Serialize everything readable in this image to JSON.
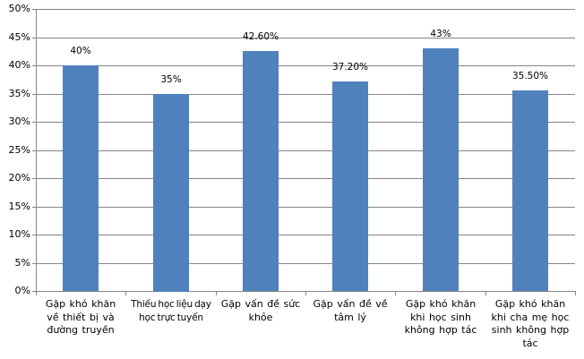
{
  "chart_data": {
    "type": "bar",
    "title": "",
    "xlabel": "",
    "ylabel": "",
    "categories": [
      "Gặp khó khăn về thiết bị và đường truyền",
      "Thiếu học liệu dạy học trực tuyến",
      "Gặp vấn đề sức khỏe",
      "Gặp vấn đề về tâm lý",
      "Gặp khó khăn khi học sinh không hợp tác",
      "Gặp khó khăn khi cha mẹ học sinh không hợp tác"
    ],
    "category_label_lines": [
      [
        "Gặp khó khăn",
        "về thiết bị và",
        "đường truyền"
      ],
      [
        "Thiếu học liệu dạy",
        "học trực tuyến"
      ],
      [
        "Gặp vấn đề sức",
        "khỏe"
      ],
      [
        "Gặp vấn đề về",
        "tâm lý"
      ],
      [
        "Gặp khó khăn",
        "khi học sinh",
        "không hợp tác"
      ],
      [
        "Gặp khó khăn",
        "khi cha mẹ học",
        "sinh không hợp",
        "tác"
      ]
    ],
    "values": [
      40,
      35,
      42.6,
      37.2,
      43,
      35.5
    ],
    "data_labels": [
      "40%",
      "35%",
      "42.60%",
      "37.20%",
      "43%",
      "35.50%"
    ],
    "ylim": [
      0,
      50
    ],
    "yticks": [
      0,
      5,
      10,
      15,
      20,
      25,
      30,
      35,
      40,
      45,
      50
    ],
    "ytick_labels": [
      "0%",
      "5%",
      "10%",
      "15%",
      "20%",
      "25%",
      "30%",
      "35%",
      "40%",
      "45%",
      "50%"
    ],
    "grid": true,
    "legend": null,
    "bar_color": "#4f81bd",
    "grid_color": "#868686"
  }
}
